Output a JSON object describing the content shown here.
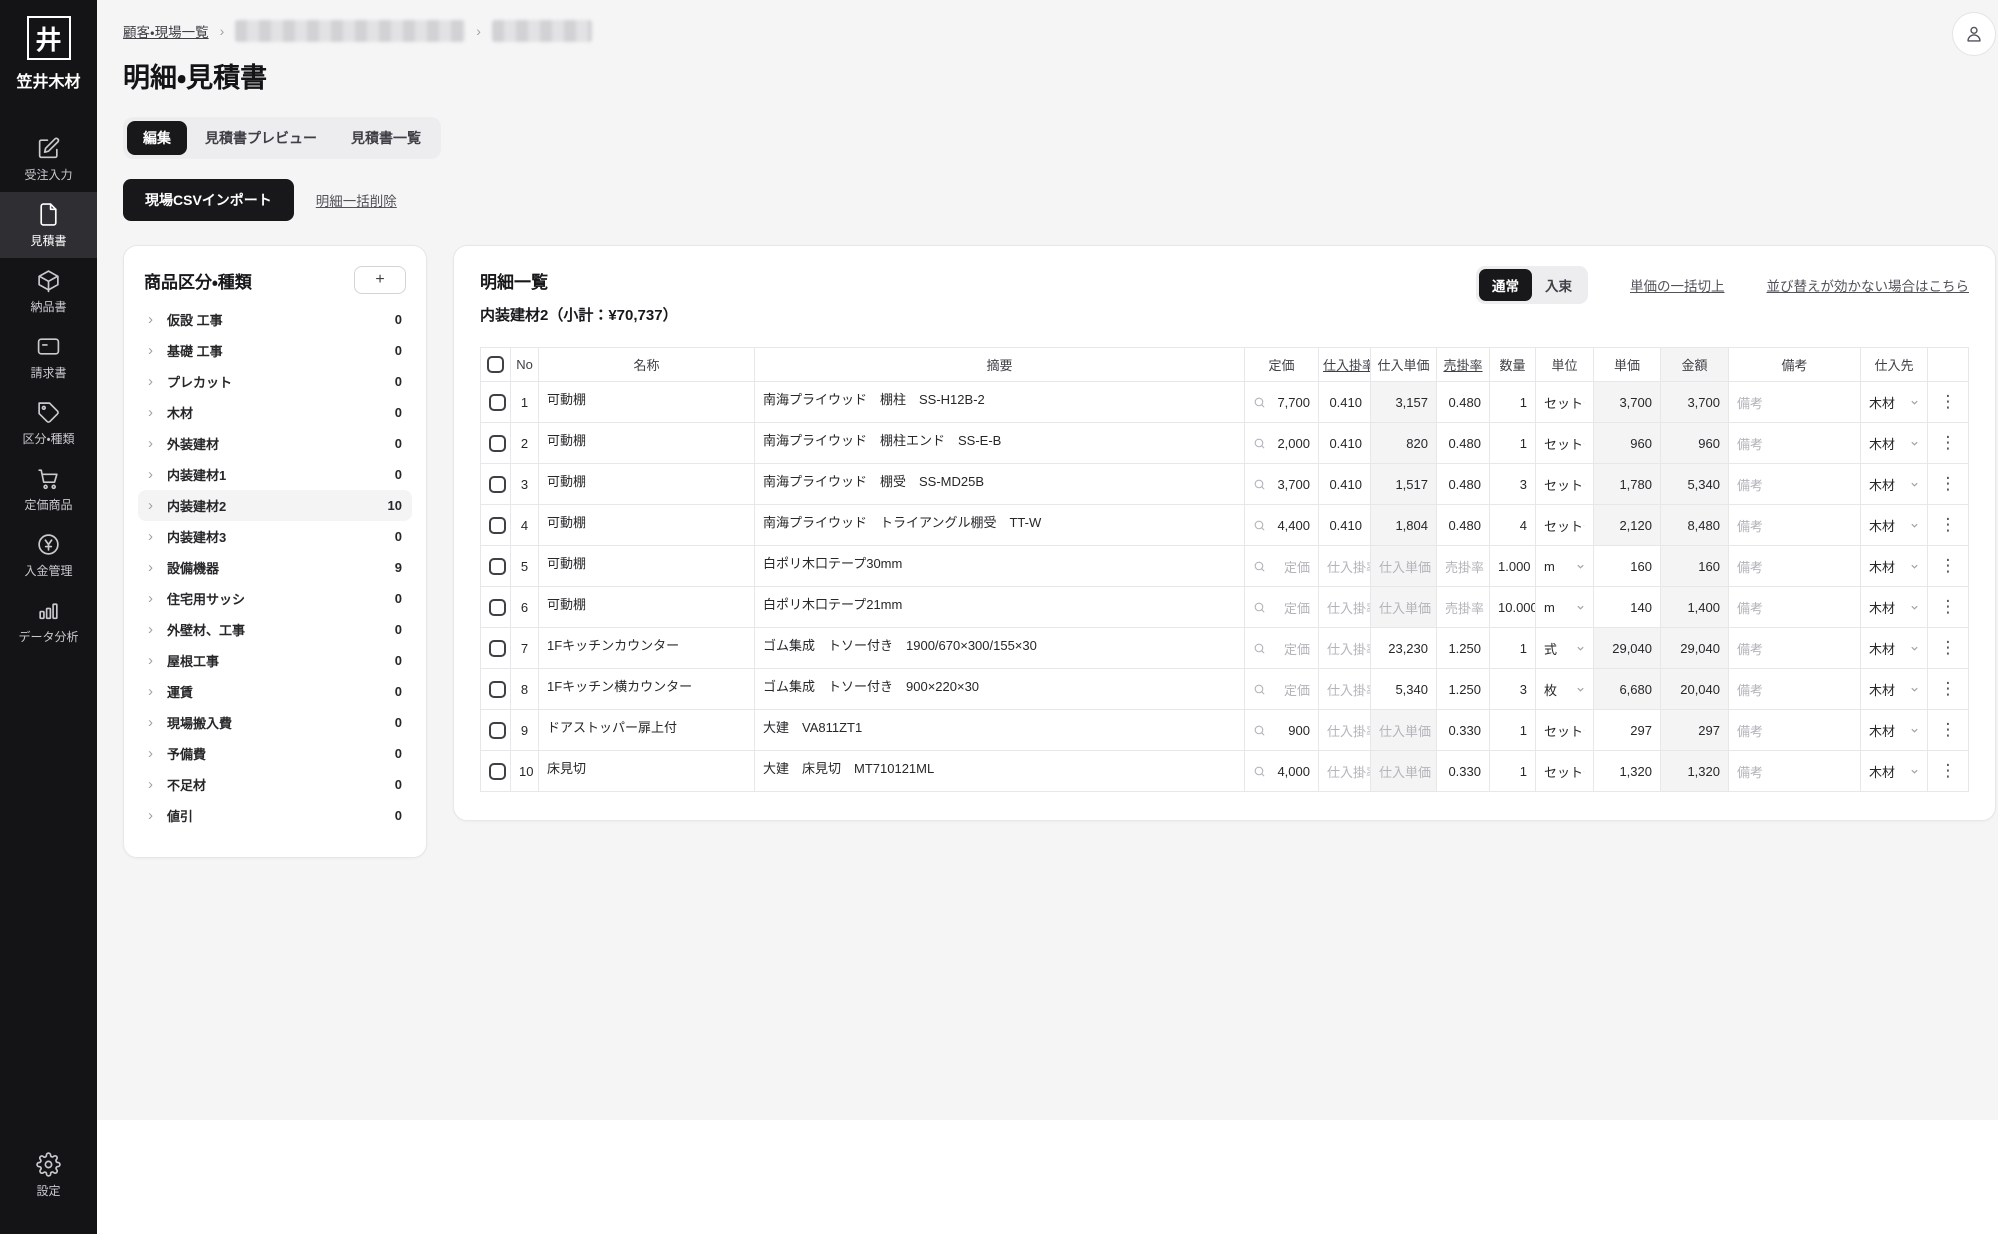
{
  "colors": {
    "accent": "#18181b",
    "page_bg": "#f5f5f6",
    "muted_cell": "#f4f4f5",
    "sidebar_bg": "#141417"
  },
  "sidebar": {
    "logo_char": "井",
    "company": "笠井木材",
    "items": [
      {
        "id": "juchu",
        "label": "受注入力",
        "icon": "edit-icon",
        "active": false
      },
      {
        "id": "mitsumori",
        "label": "見積書",
        "icon": "document-icon",
        "active": true
      },
      {
        "id": "nohin",
        "label": "納品書",
        "icon": "package-icon",
        "active": false
      },
      {
        "id": "seikyu",
        "label": "請求書",
        "icon": "card-icon",
        "active": false
      },
      {
        "id": "kubun",
        "label": "区分・種類",
        "icon": "tag-icon",
        "active": false
      },
      {
        "id": "teika",
        "label": "定価商品",
        "icon": "cart-icon",
        "active": false
      },
      {
        "id": "nyukin",
        "label": "入金管理",
        "icon": "yen-icon",
        "active": false
      },
      {
        "id": "bunseki",
        "label": "データ分析",
        "icon": "chart-icon",
        "active": false
      }
    ],
    "settings": {
      "id": "settings",
      "label": "設定",
      "icon": "gear-icon"
    }
  },
  "header": {
    "breadcrumb": {
      "root": "顧客・現場一覧",
      "separator": "›"
    },
    "title": "明細・見積書",
    "tabs": [
      {
        "label": "編集",
        "active": true
      },
      {
        "label": "見積書プレビュー",
        "active": false
      },
      {
        "label": "見積書一覧",
        "active": false
      }
    ],
    "csv_button": "現場CSVインポート",
    "bulk_delete_link": "明細一括削除"
  },
  "categories": {
    "title": "商品区分・種類",
    "add_button": "+",
    "items": [
      {
        "label": "仮設 工事",
        "count": "0",
        "selected": false
      },
      {
        "label": "基礎 工事",
        "count": "0",
        "selected": false
      },
      {
        "label": "プレカット",
        "count": "0",
        "selected": false
      },
      {
        "label": "木材",
        "count": "0",
        "selected": false
      },
      {
        "label": "外装建材",
        "count": "0",
        "selected": false
      },
      {
        "label": "内装建材1",
        "count": "0",
        "selected": false
      },
      {
        "label": "内装建材2",
        "count": "10",
        "selected": true
      },
      {
        "label": "内装建材3",
        "count": "0",
        "selected": false
      },
      {
        "label": "設備機器",
        "count": "9",
        "selected": false
      },
      {
        "label": "住宅用サッシ",
        "count": "0",
        "selected": false
      },
      {
        "label": "外壁材、工事",
        "count": "0",
        "selected": false
      },
      {
        "label": "屋根工事",
        "count": "0",
        "selected": false
      },
      {
        "label": "運賃",
        "count": "0",
        "selected": false
      },
      {
        "label": "現場搬入費",
        "count": "0",
        "selected": false
      },
      {
        "label": "予備費",
        "count": "0",
        "selected": false
      },
      {
        "label": "不足材",
        "count": "0",
        "selected": false
      },
      {
        "label": "値引",
        "count": "0",
        "selected": false
      }
    ]
  },
  "detail": {
    "title": "明細一覧",
    "subtitle": "内装建材2（小計：¥70,737）",
    "toggle": [
      {
        "label": "通常",
        "active": true
      },
      {
        "label": "入束",
        "active": false
      }
    ],
    "links": [
      "単価の一括切上",
      "並び替えが効かない場合はこちら"
    ]
  },
  "table": {
    "headers": {
      "no": "No",
      "name": "名称",
      "desc": "摘要",
      "list_price": "定価",
      "purchase_rate": "仕入掛率",
      "purchase_unit_price": "仕入単価",
      "sell_rate": "売掛率",
      "qty": "数量",
      "unit": "単位",
      "unit_price": "単価",
      "amount": "金額",
      "remarks": "備考",
      "supplier": "仕入先"
    },
    "underlined_headers": [
      "purchase_rate",
      "sell_rate"
    ],
    "placeholders": {
      "list_price": "定価",
      "purchase_rate": "仕入掛率",
      "purchase_unit_price": "仕入単価",
      "sell_rate": "売掛率",
      "remarks": "備考"
    },
    "rows": [
      {
        "no": "1",
        "name": "可動棚",
        "desc": "南海プライウッド　棚柱　SS-H12B-2",
        "list_price": "7,700",
        "purchase_rate": "0.410",
        "purchase_unit_price": "3,157",
        "sell_rate": "0.480",
        "qty": "1",
        "unit": "セット",
        "unit_price": "3,700",
        "amount": "3,700",
        "remarks": "",
        "supplier": "木材",
        "gray": [
          "purchase_unit_price",
          "unit_price",
          "amount"
        ]
      },
      {
        "no": "2",
        "name": "可動棚",
        "desc": "南海プライウッド　棚柱エンド　SS-E-B",
        "list_price": "2,000",
        "purchase_rate": "0.410",
        "purchase_unit_price": "820",
        "sell_rate": "0.480",
        "qty": "1",
        "unit": "セット",
        "unit_price": "960",
        "amount": "960",
        "remarks": "",
        "supplier": "木材",
        "gray": [
          "purchase_unit_price",
          "unit_price",
          "amount"
        ]
      },
      {
        "no": "3",
        "name": "可動棚",
        "desc": "南海プライウッド　棚受　SS-MD25B",
        "list_price": "3,700",
        "purchase_rate": "0.410",
        "purchase_unit_price": "1,517",
        "sell_rate": "0.480",
        "qty": "3",
        "unit": "セット",
        "unit_price": "1,780",
        "amount": "5,340",
        "remarks": "",
        "supplier": "木材",
        "gray": [
          "purchase_unit_price",
          "unit_price",
          "amount"
        ]
      },
      {
        "no": "4",
        "name": "可動棚",
        "desc": "南海プライウッド　トライアングル棚受　TT-W",
        "list_price": "4,400",
        "purchase_rate": "0.410",
        "purchase_unit_price": "1,804",
        "sell_rate": "0.480",
        "qty": "4",
        "unit": "セット",
        "unit_price": "2,120",
        "amount": "8,480",
        "remarks": "",
        "supplier": "木材",
        "gray": [
          "purchase_unit_price",
          "unit_price",
          "amount"
        ]
      },
      {
        "no": "5",
        "name": "可動棚",
        "desc": "白ポリ木口テープ30mm",
        "list_price": "",
        "purchase_rate": "",
        "purchase_unit_price": "",
        "sell_rate": "",
        "qty": "1.000",
        "unit": "m",
        "unit_price": "160",
        "amount": "160",
        "remarks": "",
        "supplier": "木材",
        "gray": [
          "purchase_unit_price",
          "amount"
        ]
      },
      {
        "no": "6",
        "name": "可動棚",
        "desc": "白ポリ木口テープ21mm",
        "list_price": "",
        "purchase_rate": "",
        "purchase_unit_price": "",
        "sell_rate": "",
        "qty": "10.000",
        "unit": "m",
        "unit_price": "140",
        "amount": "1,400",
        "remarks": "",
        "supplier": "木材",
        "gray": [
          "purchase_unit_price",
          "amount"
        ]
      },
      {
        "no": "7",
        "name": "1Fキッチンカウンター",
        "desc": "ゴム集成　トソー付き　1900/670×300/155×30",
        "list_price": "",
        "purchase_rate": "",
        "purchase_unit_price": "23,230",
        "sell_rate": "1.250",
        "qty": "1",
        "unit": "式",
        "unit_price": "29,040",
        "amount": "29,040",
        "remarks": "",
        "supplier": "木材",
        "gray": [
          "unit_price",
          "amount"
        ]
      },
      {
        "no": "8",
        "name": "1Fキッチン横カウンター",
        "desc": "ゴム集成　トソー付き　900×220×30",
        "list_price": "",
        "purchase_rate": "",
        "purchase_unit_price": "5,340",
        "sell_rate": "1.250",
        "qty": "3",
        "unit": "枚",
        "unit_price": "6,680",
        "amount": "20,040",
        "remarks": "",
        "supplier": "木材",
        "gray": [
          "unit_price",
          "amount"
        ]
      },
      {
        "no": "9",
        "name": "ドアストッパー扉上付",
        "desc": "大建　VA811ZT1",
        "list_price": "900",
        "purchase_rate": "",
        "purchase_unit_price": "",
        "sell_rate": "0.330",
        "qty": "1",
        "unit": "セット",
        "unit_price": "297",
        "amount": "297",
        "remarks": "",
        "supplier": "木材",
        "gray": [
          "purchase_unit_price",
          "amount"
        ]
      },
      {
        "no": "10",
        "name": "床見切",
        "desc": "大建　床見切　MT710121ML",
        "list_price": "4,000",
        "purchase_rate": "",
        "purchase_unit_price": "",
        "sell_rate": "0.330",
        "qty": "1",
        "unit": "セット",
        "unit_price": "1,320",
        "amount": "1,320",
        "remarks": "",
        "supplier": "木材",
        "gray": [
          "purchase_unit_price",
          "amount"
        ]
      }
    ]
  }
}
